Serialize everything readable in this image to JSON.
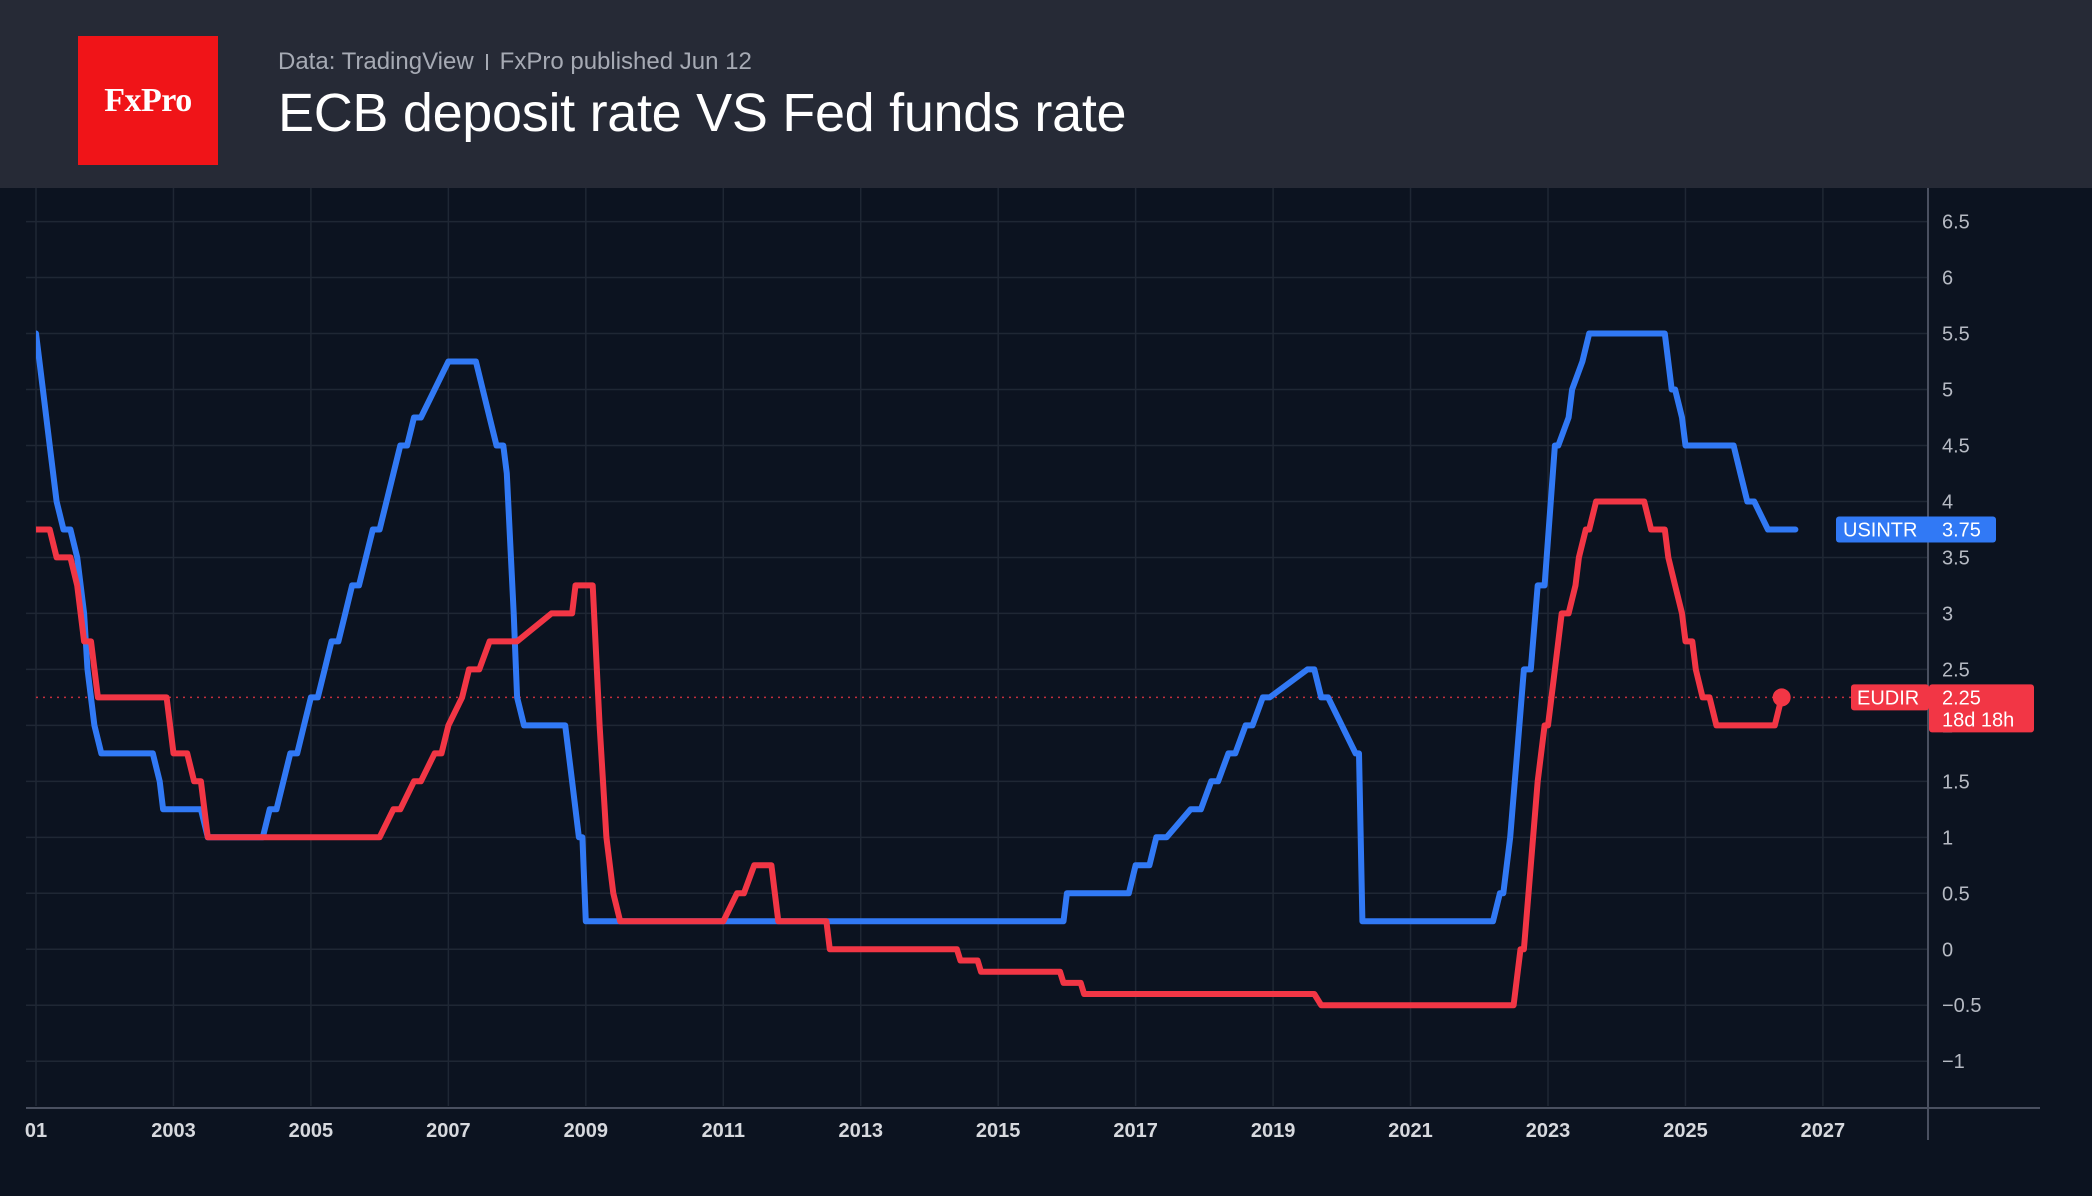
{
  "header": {
    "logo_text": "FxPro",
    "source": "Data: TradingView",
    "published": "FxPro published Jun 12",
    "title": "ECB deposit rate VS Fed funds rate"
  },
  "colors": {
    "background": "#0c1320",
    "header_bg": "#262a36",
    "logo_red": "#f01418",
    "usintr": "#3179f5",
    "eudir": "#f23645"
  },
  "chart_data": {
    "type": "line",
    "title": "ECB deposit rate VS Fed funds rate",
    "xlabel": "",
    "ylabel": "",
    "xlim": [
      2001.0,
      2028.5
    ],
    "ylim": [
      -1.4,
      6.8
    ],
    "y_ticks": [
      "6.5",
      "6",
      "5.5",
      "5",
      "4.5",
      "4",
      "3.5",
      "3",
      "2.5",
      "2",
      "1.5",
      "1",
      "0.5",
      "0",
      "−0.5",
      "−1"
    ],
    "y_tick_values": [
      6.5,
      6,
      5.5,
      5,
      4.5,
      4,
      3.5,
      3,
      2.5,
      2,
      1.5,
      1,
      0.5,
      0,
      -0.5,
      -1
    ],
    "x_ticks": [
      "01",
      "2003",
      "2005",
      "2007",
      "2009",
      "2011",
      "2013",
      "2015",
      "2017",
      "2019",
      "2021",
      "2023",
      "2025",
      "2027"
    ],
    "x_tick_values": [
      2001,
      2003,
      2005,
      2007,
      2009,
      2011,
      2013,
      2015,
      2017,
      2019,
      2021,
      2023,
      2025,
      2027
    ],
    "grid": true,
    "series": [
      {
        "name": "USINTR",
        "color": "#3179f5",
        "last_value_label": "3.75",
        "x": [
          2001.0,
          2001.1,
          2001.2,
          2001.3,
          2001.4,
          2001.5,
          2001.6,
          2001.7,
          2001.75,
          2001.85,
          2001.95,
          2002.0,
          2002.2,
          2002.4,
          2002.6,
          2002.7,
          2002.8,
          2002.85,
          2002.9,
          2003.0,
          2003.2,
          2003.4,
          2003.5,
          2003.6,
          2003.8,
          2004.0,
          2004.2,
          2004.3,
          2004.4,
          2004.5,
          2004.6,
          2004.7,
          2004.8,
          2004.9,
          2005.0,
          2005.1,
          2005.2,
          2005.3,
          2005.4,
          2005.5,
          2005.6,
          2005.7,
          2005.8,
          2005.9,
          2006.0,
          2006.1,
          2006.2,
          2006.3,
          2006.4,
          2006.5,
          2006.6,
          2007.0,
          2007.4,
          2007.6,
          2007.7,
          2007.8,
          2007.85,
          2007.95,
          2008.0,
          2008.1,
          2008.2,
          2008.3,
          2008.35,
          2008.5,
          2008.7,
          2008.8,
          2008.9,
          2008.95,
          2009.0,
          2011.0,
          2013.0,
          2015.0,
          2015.95,
          2016.0,
          2016.9,
          2017.0,
          2017.2,
          2017.3,
          2017.45,
          2017.8,
          2017.95,
          2018.1,
          2018.2,
          2018.35,
          2018.45,
          2018.6,
          2018.7,
          2018.85,
          2018.95,
          2019.5,
          2019.6,
          2019.7,
          2019.8,
          2020.2,
          2020.25,
          2020.3,
          2021.0,
          2022.2,
          2022.3,
          2022.35,
          2022.45,
          2022.55,
          2022.65,
          2022.75,
          2022.85,
          2022.95,
          2023.1,
          2023.15,
          2023.3,
          2023.35,
          2023.5,
          2023.6,
          2024.0,
          2024.7,
          2024.8,
          2024.85,
          2024.95,
          2025.0,
          2025.7,
          2025.8,
          2025.9,
          2026.0,
          2026.2,
          2026.6
        ],
        "y": [
          5.5,
          5.0,
          4.5,
          4.0,
          3.75,
          3.75,
          3.5,
          3.0,
          2.5,
          2.0,
          1.75,
          1.75,
          1.75,
          1.75,
          1.75,
          1.75,
          1.5,
          1.25,
          1.25,
          1.25,
          1.25,
          1.25,
          1.0,
          1.0,
          1.0,
          1.0,
          1.0,
          1.0,
          1.25,
          1.25,
          1.5,
          1.75,
          1.75,
          2.0,
          2.25,
          2.25,
          2.5,
          2.75,
          2.75,
          3.0,
          3.25,
          3.25,
          3.5,
          3.75,
          3.75,
          4.0,
          4.25,
          4.5,
          4.5,
          4.75,
          4.75,
          5.25,
          5.25,
          4.75,
          4.5,
          4.5,
          4.25,
          3.0,
          2.25,
          2.0,
          2.0,
          2.0,
          2.0,
          2.0,
          2.0,
          1.5,
          1.0,
          1.0,
          0.25,
          0.25,
          0.25,
          0.25,
          0.25,
          0.5,
          0.5,
          0.75,
          0.75,
          1.0,
          1.0,
          1.25,
          1.25,
          1.5,
          1.5,
          1.75,
          1.75,
          2.0,
          2.0,
          2.25,
          2.25,
          2.5,
          2.5,
          2.25,
          2.25,
          1.75,
          1.75,
          0.25,
          0.25,
          0.25,
          0.5,
          0.5,
          1.0,
          1.75,
          2.5,
          2.5,
          3.25,
          3.25,
          4.5,
          4.5,
          4.75,
          5.0,
          5.25,
          5.5,
          5.5,
          5.5,
          5.0,
          5.0,
          4.75,
          4.5,
          4.5,
          4.25,
          4.0,
          4.0,
          3.75,
          3.75
        ]
      },
      {
        "name": "EUDIR",
        "color": "#f23645",
        "last_value_label": "2.25",
        "countdown_label": "18d 18h",
        "x": [
          2001.0,
          2001.2,
          2001.3,
          2001.5,
          2001.6,
          2001.7,
          2001.8,
          2001.9,
          2002.0,
          2002.2,
          2002.9,
          2003.0,
          2003.2,
          2003.3,
          2003.4,
          2003.5,
          2003.6,
          2004.0,
          2005.0,
          2005.8,
          2005.95,
          2006.0,
          2006.2,
          2006.3,
          2006.5,
          2006.6,
          2006.8,
          2006.9,
          2007.0,
          2007.2,
          2007.3,
          2007.45,
          2007.6,
          2008.0,
          2008.5,
          2008.6,
          2008.7,
          2008.8,
          2008.85,
          2008.95,
          2009.0,
          2009.1,
          2009.2,
          2009.3,
          2009.4,
          2009.5,
          2010.0,
          2011.0,
          2011.2,
          2011.3,
          2011.45,
          2011.5,
          2011.7,
          2011.8,
          2011.9,
          2012.0,
          2012.5,
          2012.55,
          2013.0,
          2014.0,
          2014.4,
          2014.45,
          2014.7,
          2014.75,
          2015.0,
          2015.9,
          2015.95,
          2016.2,
          2016.25,
          2017.0,
          2018.0,
          2019.0,
          2019.6,
          2019.7,
          2020.0,
          2021.0,
          2022.0,
          2022.5,
          2022.6,
          2022.65,
          2022.75,
          2022.85,
          2022.95,
          2023.0,
          2023.1,
          2023.2,
          2023.3,
          2023.4,
          2023.45,
          2023.55,
          2023.6,
          2023.7,
          2024.0,
          2024.4,
          2024.5,
          2024.7,
          2024.75,
          2024.85,
          2024.95,
          2025.0,
          2025.1,
          2025.15,
          2025.25,
          2025.35,
          2025.45,
          2025.55,
          2025.6,
          2026.0,
          2026.3,
          2026.4
        ],
        "y": [
          3.75,
          3.75,
          3.5,
          3.5,
          3.25,
          2.75,
          2.75,
          2.25,
          2.25,
          2.25,
          2.25,
          1.75,
          1.75,
          1.5,
          1.5,
          1.0,
          1.0,
          1.0,
          1.0,
          1.0,
          1.0,
          1.0,
          1.25,
          1.25,
          1.5,
          1.5,
          1.75,
          1.75,
          2.0,
          2.25,
          2.5,
          2.5,
          2.75,
          2.75,
          3.0,
          3.0,
          3.0,
          3.0,
          3.25,
          3.25,
          3.25,
          3.25,
          2.0,
          1.0,
          0.5,
          0.25,
          0.25,
          0.25,
          0.5,
          0.5,
          0.75,
          0.75,
          0.75,
          0.25,
          0.25,
          0.25,
          0.25,
          0.0,
          0.0,
          0.0,
          0.0,
          -0.1,
          -0.1,
          -0.2,
          -0.2,
          -0.2,
          -0.3,
          -0.3,
          -0.4,
          -0.4,
          -0.4,
          -0.4,
          -0.4,
          -0.5,
          -0.5,
          -0.5,
          -0.5,
          -0.5,
          0.0,
          0.0,
          0.75,
          1.5,
          2.0,
          2.0,
          2.5,
          3.0,
          3.0,
          3.25,
          3.5,
          3.75,
          3.75,
          4.0,
          4.0,
          4.0,
          3.75,
          3.75,
          3.5,
          3.25,
          3.0,
          2.75,
          2.75,
          2.5,
          2.25,
          2.25,
          2.0,
          2.0,
          2.0,
          2.0,
          2.0,
          2.25
        ]
      }
    ]
  }
}
